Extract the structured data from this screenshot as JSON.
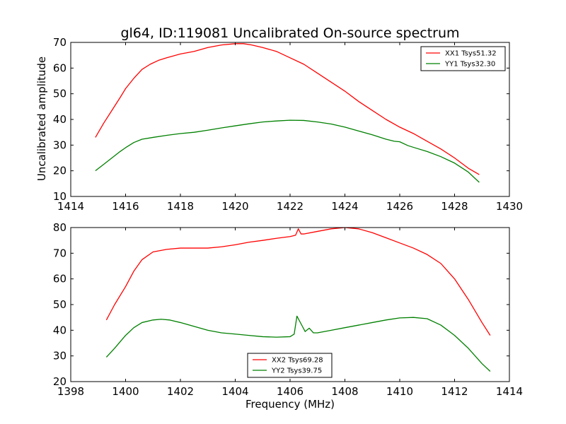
{
  "chart_data": [
    {
      "type": "line",
      "title": "gl64, ID:119081 Uncalibrated On-source spectrum",
      "xlabel": "",
      "ylabel": "Uncalibrated amplitude",
      "xlim": [
        1414,
        1430
      ],
      "ylim": [
        10,
        70
      ],
      "xticks": [
        "1414",
        "1416",
        "1418",
        "1420",
        "1422",
        "1424",
        "1426",
        "1428",
        "1430"
      ],
      "yticks": [
        "10",
        "20",
        "30",
        "40",
        "50",
        "60",
        "70"
      ],
      "grid": false,
      "legend_position": "top-right",
      "series": [
        {
          "name": "XX1 Tsys51.32",
          "color": "#ff0000",
          "x": [
            1414.9,
            1415.2,
            1415.5,
            1415.8,
            1416.0,
            1416.3,
            1416.6,
            1416.9,
            1417.2,
            1417.5,
            1418.0,
            1418.5,
            1419.0,
            1419.5,
            1420.0,
            1420.3,
            1420.6,
            1421.0,
            1421.5,
            1422.0,
            1422.5,
            1423.0,
            1423.5,
            1424.0,
            1424.5,
            1425.0,
            1425.5,
            1426.0,
            1426.5,
            1427.0,
            1427.5,
            1428.0,
            1428.5,
            1428.9
          ],
          "y": [
            33.0,
            38.5,
            43.5,
            48.5,
            52.0,
            56.0,
            59.5,
            61.5,
            63.0,
            64.0,
            65.5,
            66.5,
            68.0,
            69.0,
            69.5,
            69.5,
            69.0,
            68.0,
            66.5,
            64.0,
            61.5,
            58.0,
            54.5,
            51.0,
            47.0,
            43.5,
            40.0,
            37.0,
            34.5,
            31.5,
            28.5,
            25.0,
            21.0,
            18.5
          ]
        },
        {
          "name": "YY1 Tsys32.30",
          "color": "#008000",
          "x": [
            1414.9,
            1415.2,
            1415.5,
            1415.8,
            1416.0,
            1416.3,
            1416.6,
            1417.0,
            1417.5,
            1418.0,
            1418.5,
            1419.0,
            1419.5,
            1420.0,
            1420.5,
            1421.0,
            1421.5,
            1422.0,
            1422.5,
            1423.0,
            1423.5,
            1424.0,
            1424.5,
            1425.0,
            1425.5,
            1425.8,
            1426.0,
            1426.3,
            1426.6,
            1427.0,
            1427.5,
            1428.0,
            1428.5,
            1428.9
          ],
          "y": [
            20.0,
            22.5,
            25.0,
            27.5,
            29.0,
            31.0,
            32.3,
            33.0,
            33.8,
            34.5,
            35.0,
            35.8,
            36.7,
            37.5,
            38.3,
            39.0,
            39.4,
            39.7,
            39.6,
            39.0,
            38.2,
            37.0,
            35.5,
            34.0,
            32.3,
            31.5,
            31.3,
            29.8,
            28.8,
            27.5,
            25.5,
            23.0,
            19.5,
            15.5
          ]
        }
      ]
    },
    {
      "type": "line",
      "title": "",
      "xlabel": "Frequency (MHz)",
      "ylabel": "",
      "xlim": [
        1398,
        1414
      ],
      "ylim": [
        20,
        80
      ],
      "xticks": [
        "1398",
        "1400",
        "1402",
        "1404",
        "1406",
        "1408",
        "1410",
        "1412",
        "1414"
      ],
      "yticks": [
        "20",
        "30",
        "40",
        "50",
        "60",
        "70",
        "80"
      ],
      "grid": false,
      "legend_position": "bottom-center",
      "series": [
        {
          "name": "XX2 Tsys69.28",
          "color": "#ff0000",
          "x": [
            1399.3,
            1399.6,
            1400.0,
            1400.3,
            1400.6,
            1401.0,
            1401.5,
            1402.0,
            1402.5,
            1403.0,
            1403.5,
            1404.0,
            1404.5,
            1405.0,
            1405.5,
            1406.0,
            1406.2,
            1406.3,
            1406.4,
            1406.5,
            1407.0,
            1407.5,
            1408.0,
            1408.5,
            1409.0,
            1409.5,
            1410.0,
            1410.5,
            1411.0,
            1411.5,
            1412.0,
            1412.5,
            1413.0,
            1413.3
          ],
          "y": [
            44.0,
            50.0,
            57.0,
            63.0,
            67.5,
            70.5,
            71.5,
            72.0,
            72.0,
            72.0,
            72.5,
            73.3,
            74.3,
            75.0,
            75.8,
            76.5,
            77.0,
            79.5,
            77.5,
            77.5,
            78.5,
            79.5,
            80.0,
            79.5,
            78.0,
            76.0,
            74.0,
            72.0,
            69.5,
            66.0,
            60.0,
            52.0,
            43.0,
            38.0
          ]
        },
        {
          "name": "YY2 Tsys39.75",
          "color": "#008000",
          "x": [
            1399.3,
            1399.6,
            1400.0,
            1400.3,
            1400.6,
            1401.0,
            1401.3,
            1401.6,
            1402.0,
            1402.5,
            1403.0,
            1403.5,
            1404.0,
            1404.5,
            1405.0,
            1405.5,
            1406.0,
            1406.15,
            1406.25,
            1406.35,
            1406.45,
            1406.55,
            1406.7,
            1406.85,
            1407.0,
            1407.5,
            1408.0,
            1408.5,
            1409.0,
            1409.5,
            1410.0,
            1410.5,
            1411.0,
            1411.5,
            1412.0,
            1412.5,
            1413.0,
            1413.3
          ],
          "y": [
            29.5,
            33.0,
            38.0,
            41.0,
            43.0,
            44.0,
            44.3,
            44.0,
            43.0,
            41.5,
            40.0,
            39.0,
            38.5,
            38.0,
            37.5,
            37.3,
            37.5,
            38.5,
            45.5,
            43.5,
            41.5,
            39.5,
            40.8,
            39.0,
            39.0,
            40.0,
            41.0,
            42.0,
            43.0,
            44.0,
            44.8,
            45.0,
            44.5,
            42.0,
            38.0,
            33.0,
            27.0,
            24.0
          ]
        }
      ]
    }
  ]
}
